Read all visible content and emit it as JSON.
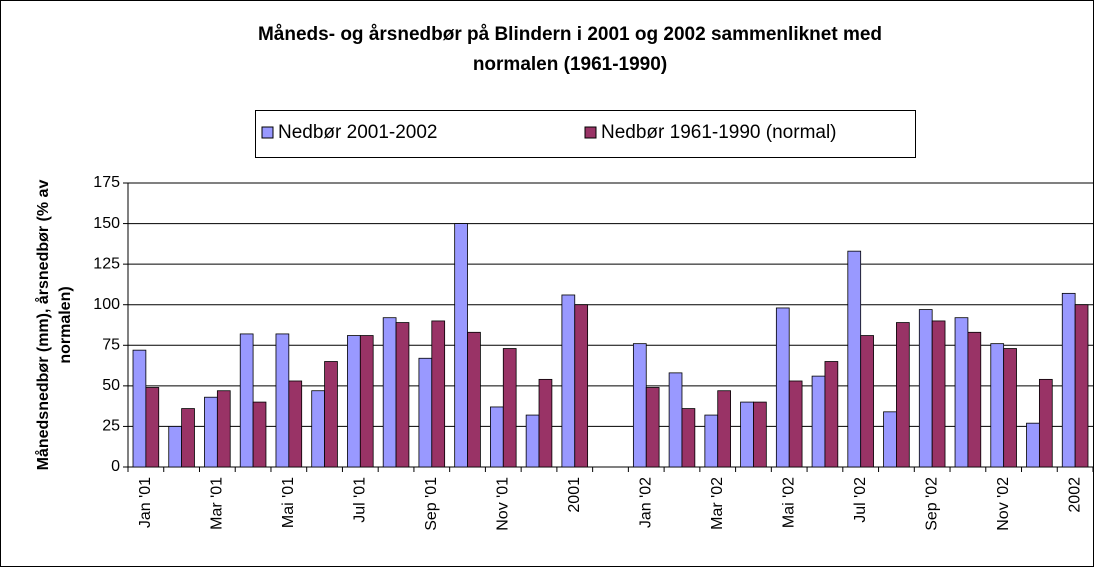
{
  "chart_data": {
    "type": "bar",
    "title": [
      "Måneds- og årsnedbør på Blindern i 2001 og 2002 sammenliknet med",
      "normalen (1961-1990)"
    ],
    "y_label": [
      "Månedsnedbør (mm), årsnedbør (% av",
      "normalen)"
    ],
    "categories": [
      "Jan '01",
      null,
      "Mar '01",
      null,
      "Mai '01",
      null,
      "Jul '01",
      null,
      "Sep '01",
      null,
      "Nov '01",
      null,
      "2001",
      null,
      "Jan '02",
      null,
      "Mar '02",
      null,
      "Mai '02",
      null,
      "Jul '02",
      null,
      "Sep '02",
      null,
      "Nov '02",
      null,
      "2002"
    ],
    "series": [
      {
        "name": "Nedbør 2001-2002",
        "color": "#9999ff",
        "values": [
          72,
          25,
          43,
          82,
          82,
          47,
          81,
          92,
          67,
          150,
          37,
          32,
          106,
          null,
          76,
          58,
          32,
          40,
          98,
          56,
          133,
          34,
          97,
          92,
          76,
          27,
          107
        ]
      },
      {
        "name": "Nedbør 1961-1990 (normal)",
        "color": "#993366",
        "values": [
          49,
          36,
          47,
          40,
          53,
          65,
          81,
          89,
          90,
          83,
          73,
          54,
          100,
          null,
          49,
          36,
          47,
          40,
          53,
          65,
          81,
          89,
          90,
          83,
          73,
          54,
          100
        ]
      }
    ],
    "ylim": [
      0,
      175
    ],
    "yticks": [
      0,
      25,
      50,
      75,
      100,
      125,
      150,
      175
    ],
    "grid": true,
    "legend": "top"
  }
}
